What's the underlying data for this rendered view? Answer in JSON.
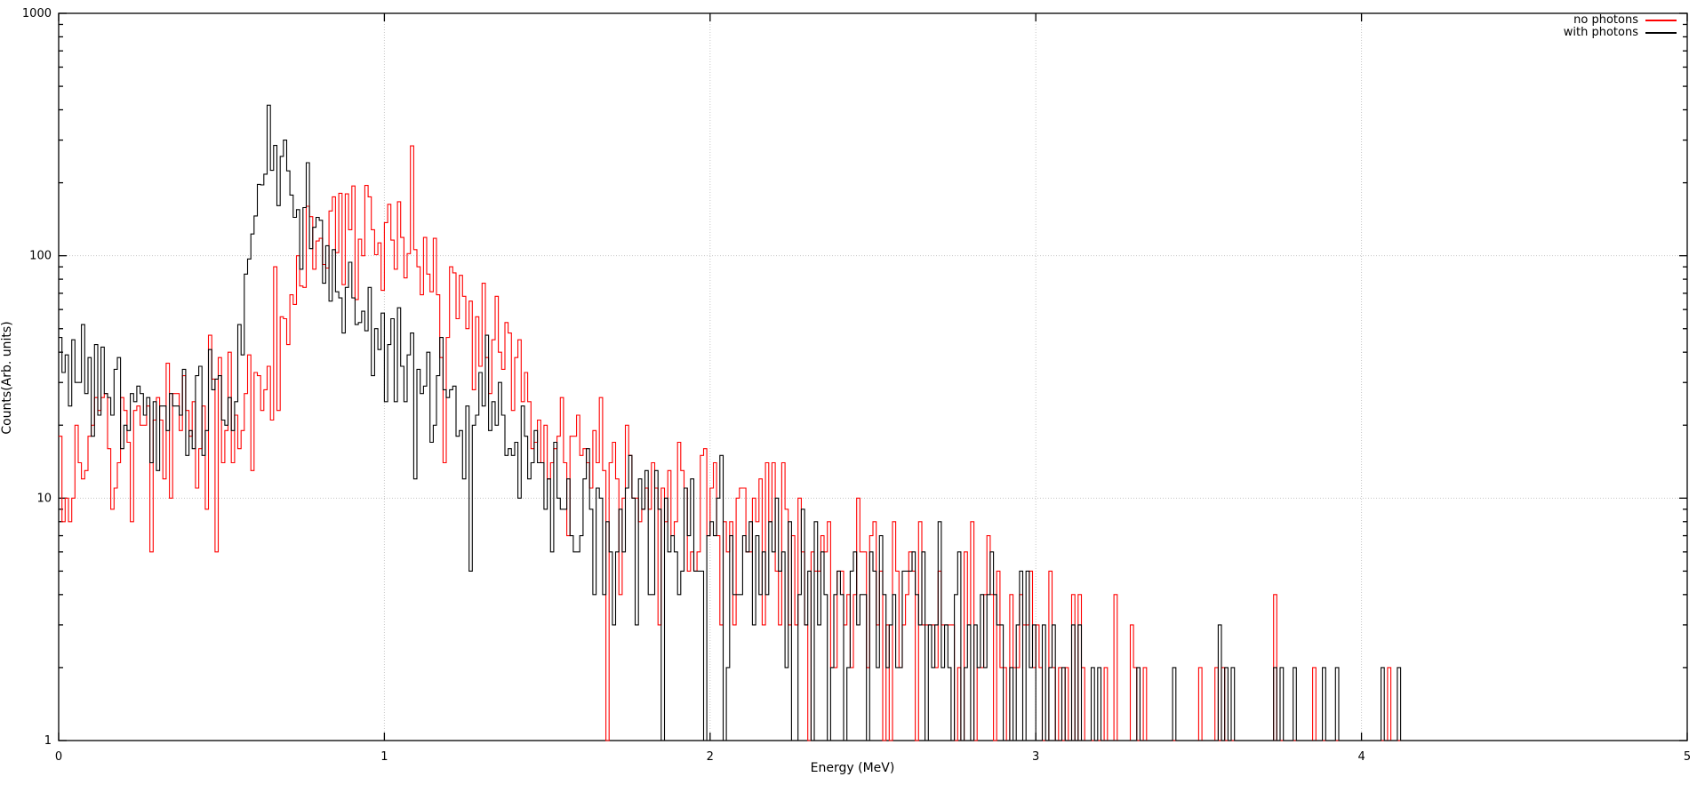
{
  "chart_data": {
    "type": "line",
    "subtype": "histogram-steps",
    "title": "",
    "xlabel": "Energy (MeV)",
    "ylabel": "Counts(Arb. units)",
    "x_range": [
      0,
      5
    ],
    "y_range": [
      1,
      1000
    ],
    "y_scale": "log10",
    "x_tick_labels": [
      "0",
      "1",
      "2",
      "3",
      "4",
      "5"
    ],
    "x_tick_values": [
      0,
      1,
      2,
      3,
      4,
      5
    ],
    "y_tick_labels": [
      "1",
      "10",
      "100",
      "1000"
    ],
    "y_tick_values": [
      1,
      10,
      100,
      1000
    ],
    "grid": true,
    "grid_color": "#c6c6c6",
    "axis_color": "#000000",
    "legend_position": "top-right-inside",
    "bin_width_mev": 0.01,
    "noise_model": "overdispersed-poisson",
    "noise_sigma": 0.28,
    "series": [
      {
        "name": "no photons",
        "color": "#ff0000",
        "seed": 1337,
        "envelope": [
          [
            0.0,
            11
          ],
          [
            0.01,
            14
          ],
          [
            0.05,
            16
          ],
          [
            0.1,
            17
          ],
          [
            0.2,
            19
          ],
          [
            0.3,
            20
          ],
          [
            0.4,
            20
          ],
          [
            0.5,
            20
          ],
          [
            0.58,
            21
          ],
          [
            0.62,
            26
          ],
          [
            0.65,
            38
          ],
          [
            0.68,
            55
          ],
          [
            0.71,
            72
          ],
          [
            0.74,
            92
          ],
          [
            0.77,
            108
          ],
          [
            0.8,
            120
          ],
          [
            0.85,
            131
          ],
          [
            0.9,
            136
          ],
          [
            0.97,
            138
          ],
          [
            1.02,
            133
          ],
          [
            1.06,
            115
          ],
          [
            1.1,
            95
          ],
          [
            1.15,
            75
          ],
          [
            1.2,
            58
          ],
          [
            1.25,
            48
          ],
          [
            1.3,
            40
          ],
          [
            1.35,
            33
          ],
          [
            1.4,
            28
          ],
          [
            1.45,
            24
          ],
          [
            1.5,
            21
          ],
          [
            1.6,
            17
          ],
          [
            1.7,
            14
          ],
          [
            1.8,
            12
          ],
          [
            1.9,
            10
          ],
          [
            2.0,
            9
          ],
          [
            2.1,
            8
          ],
          [
            2.2,
            6.5
          ],
          [
            2.3,
            5.5
          ],
          [
            2.4,
            5
          ],
          [
            2.5,
            4.5
          ],
          [
            2.6,
            4
          ],
          [
            2.7,
            3.6
          ],
          [
            2.8,
            3.2
          ],
          [
            2.9,
            2.9
          ],
          [
            3.0,
            2.5
          ],
          [
            3.1,
            2.1
          ],
          [
            3.2,
            1.5
          ],
          [
            3.3,
            1.1
          ],
          [
            3.4,
            0.85
          ],
          [
            3.5,
            0.7
          ],
          [
            3.6,
            0.6
          ],
          [
            3.7,
            0.5
          ],
          [
            3.8,
            0.45
          ],
          [
            3.9,
            0.4
          ],
          [
            4.0,
            0.38
          ],
          [
            4.1,
            0.33
          ],
          [
            4.2,
            0.28
          ],
          [
            4.3,
            0.2
          ],
          [
            4.4,
            0.08
          ],
          [
            4.6,
            0.03
          ],
          [
            5.0,
            0.02
          ]
        ]
      },
      {
        "name": "with photons",
        "color": "#000000",
        "seed": 7331,
        "envelope": [
          [
            0.0,
            50
          ],
          [
            0.02,
            40
          ],
          [
            0.05,
            31
          ],
          [
            0.1,
            27
          ],
          [
            0.15,
            25
          ],
          [
            0.2,
            23
          ],
          [
            0.3,
            22
          ],
          [
            0.4,
            22
          ],
          [
            0.5,
            21
          ],
          [
            0.53,
            24
          ],
          [
            0.55,
            38
          ],
          [
            0.57,
            75
          ],
          [
            0.59,
            130
          ],
          [
            0.61,
            195
          ],
          [
            0.63,
            250
          ],
          [
            0.645,
            268
          ],
          [
            0.66,
            258
          ],
          [
            0.68,
            235
          ],
          [
            0.7,
            205
          ],
          [
            0.73,
            168
          ],
          [
            0.76,
            138
          ],
          [
            0.79,
            112
          ],
          [
            0.82,
            95
          ],
          [
            0.86,
            76
          ],
          [
            0.9,
            63
          ],
          [
            0.95,
            51
          ],
          [
            1.0,
            43
          ],
          [
            1.05,
            36
          ],
          [
            1.1,
            30
          ],
          [
            1.2,
            23
          ],
          [
            1.3,
            18.5
          ],
          [
            1.4,
            15
          ],
          [
            1.5,
            12.5
          ],
          [
            1.6,
            10.5
          ],
          [
            1.7,
            9
          ],
          [
            1.8,
            8
          ],
          [
            1.9,
            7
          ],
          [
            2.0,
            6.3
          ],
          [
            2.1,
            5.6
          ],
          [
            2.2,
            5
          ],
          [
            2.3,
            4.5
          ],
          [
            2.4,
            4
          ],
          [
            2.5,
            3.6
          ],
          [
            2.6,
            3.2
          ],
          [
            2.7,
            2.9
          ],
          [
            2.8,
            2.6
          ],
          [
            2.9,
            2.3
          ],
          [
            3.0,
            2.0
          ],
          [
            3.1,
            1.7
          ],
          [
            3.2,
            1.1
          ],
          [
            3.3,
            0.75
          ],
          [
            3.4,
            0.6
          ],
          [
            3.5,
            0.5
          ],
          [
            3.6,
            0.45
          ],
          [
            3.7,
            0.4
          ],
          [
            3.8,
            0.3
          ],
          [
            3.9,
            0.2
          ],
          [
            4.0,
            0.15
          ],
          [
            4.1,
            0.12
          ],
          [
            4.2,
            0.1
          ],
          [
            4.3,
            0.09
          ],
          [
            4.4,
            0.04
          ],
          [
            5.0,
            0.01
          ]
        ]
      }
    ]
  }
}
